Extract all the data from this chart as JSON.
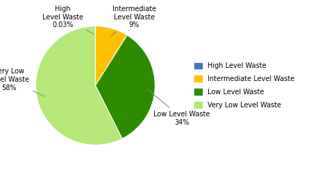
{
  "labels": [
    "High Level Waste",
    "Intermediate Level Waste",
    "Low Level Waste",
    "Very Low Level Waste"
  ],
  "values": [
    0.03,
    9,
    34,
    58
  ],
  "colors": [
    "#4472C4",
    "#FFC000",
    "#2E8B00",
    "#B5E878"
  ],
  "background_color": "#ffffff",
  "start_angle": 90,
  "figsize": [
    4.74,
    2.47
  ],
  "dpi": 100,
  "legend_fontsize": 7,
  "label_fontsize": 7
}
